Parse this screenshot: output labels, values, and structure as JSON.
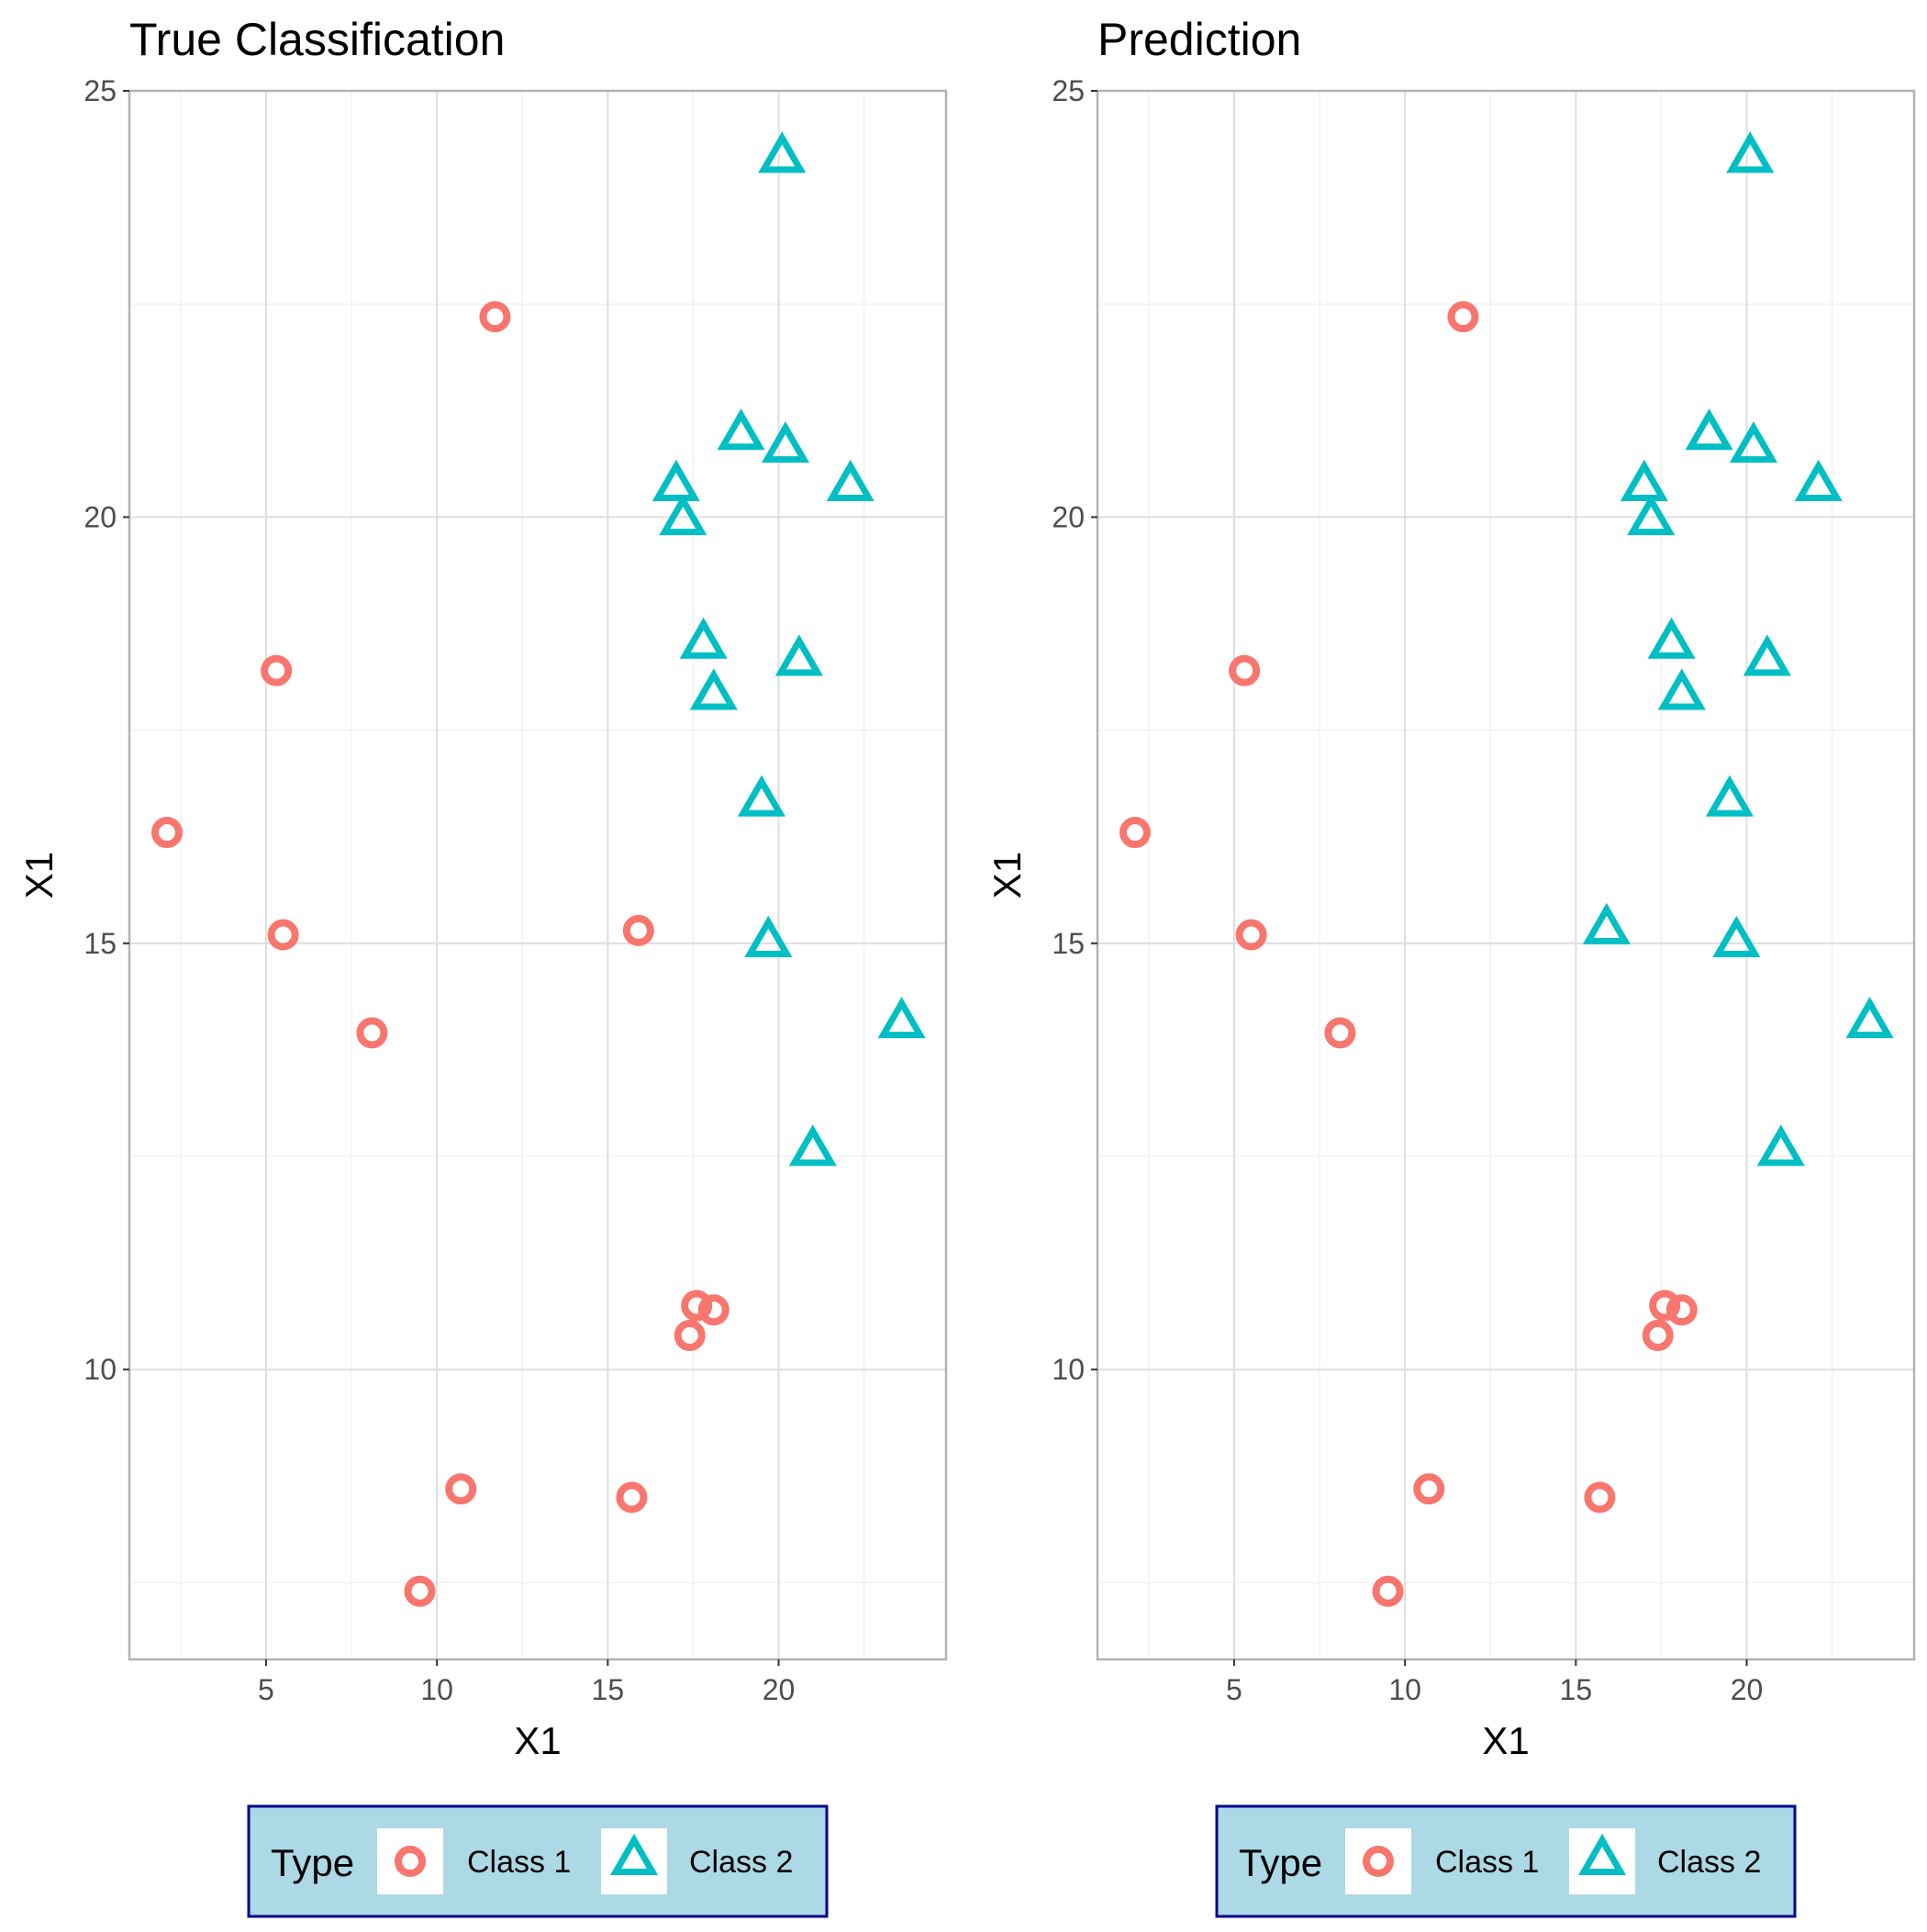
{
  "chart_data": [
    {
      "type": "scatter",
      "title": "True Classification",
      "xlabel": "X1",
      "ylabel": "X1",
      "xlim": [
        1.0,
        24.9
      ],
      "ylim": [
        6.6,
        25.0
      ],
      "x_ticks": [
        5,
        10,
        15,
        20
      ],
      "y_ticks": [
        10,
        15,
        20,
        25
      ],
      "grid": true,
      "legend": {
        "title": "Type",
        "placement": "bottom",
        "entries": [
          {
            "label": "Class 1",
            "shape": "circle",
            "color": "#F8766D"
          },
          {
            "label": "Class 2",
            "shape": "triangle",
            "color": "#00BFC4"
          }
        ]
      },
      "series": [
        {
          "name": "Class 1",
          "shape": "circle",
          "color": "#F8766D",
          "points": [
            [
              11.7,
              22.35
            ],
            [
              5.3,
              18.2
            ],
            [
              2.1,
              16.3
            ],
            [
              5.5,
              15.1
            ],
            [
              8.1,
              13.95
            ],
            [
              15.9,
              15.15
            ],
            [
              17.6,
              10.75
            ],
            [
              18.1,
              10.7
            ],
            [
              17.4,
              10.4
            ],
            [
              10.7,
              8.6
            ],
            [
              15.7,
              8.5
            ],
            [
              9.5,
              7.4
            ]
          ]
        },
        {
          "name": "Class 2",
          "shape": "triangle",
          "color": "#00BFC4",
          "points": [
            [
              20.1,
              24.2
            ],
            [
              18.9,
              20.95
            ],
            [
              20.2,
              20.8
            ],
            [
              17.0,
              20.35
            ],
            [
              22.1,
              20.35
            ],
            [
              17.2,
              19.95
            ],
            [
              17.8,
              18.5
            ],
            [
              20.6,
              18.3
            ],
            [
              18.1,
              17.9
            ],
            [
              19.5,
              16.65
            ],
            [
              19.7,
              15.0
            ],
            [
              23.6,
              14.05
            ],
            [
              21.0,
              12.55
            ]
          ]
        }
      ]
    },
    {
      "type": "scatter",
      "title": "Prediction",
      "xlabel": "X1",
      "ylabel": "X1",
      "xlim": [
        1.0,
        24.9
      ],
      "ylim": [
        6.6,
        25.0
      ],
      "x_ticks": [
        5,
        10,
        15,
        20
      ],
      "y_ticks": [
        10,
        15,
        20,
        25
      ],
      "grid": true,
      "legend": {
        "title": "Type",
        "placement": "bottom",
        "entries": [
          {
            "label": "Class 1",
            "shape": "circle",
            "color": "#F8766D"
          },
          {
            "label": "Class 2",
            "shape": "triangle",
            "color": "#00BFC4"
          }
        ]
      },
      "series": [
        {
          "name": "Class 1",
          "shape": "circle",
          "color": "#F8766D",
          "points": [
            [
              11.7,
              22.35
            ],
            [
              5.3,
              18.2
            ],
            [
              2.1,
              16.3
            ],
            [
              5.5,
              15.1
            ],
            [
              8.1,
              13.95
            ],
            [
              17.6,
              10.75
            ],
            [
              18.1,
              10.7
            ],
            [
              17.4,
              10.4
            ],
            [
              10.7,
              8.6
            ],
            [
              15.7,
              8.5
            ],
            [
              9.5,
              7.4
            ]
          ]
        },
        {
          "name": "Class 2",
          "shape": "triangle",
          "color": "#00BFC4",
          "points": [
            [
              20.1,
              24.2
            ],
            [
              18.9,
              20.95
            ],
            [
              20.2,
              20.8
            ],
            [
              17.0,
              20.35
            ],
            [
              22.1,
              20.35
            ],
            [
              17.2,
              19.95
            ],
            [
              17.8,
              18.5
            ],
            [
              20.6,
              18.3
            ],
            [
              18.1,
              17.9
            ],
            [
              19.5,
              16.65
            ],
            [
              15.9,
              15.15
            ],
            [
              19.7,
              15.0
            ],
            [
              23.6,
              14.05
            ],
            [
              21.0,
              12.55
            ]
          ]
        }
      ]
    }
  ],
  "colors": {
    "legend_background": "#ADD8E6",
    "legend_border": "#00008B",
    "grid_major": "#DEDEDE",
    "grid_minor": "#EFEFEF",
    "panel_border": "#B3B3B3",
    "tick_label": "#4D4D4D"
  }
}
